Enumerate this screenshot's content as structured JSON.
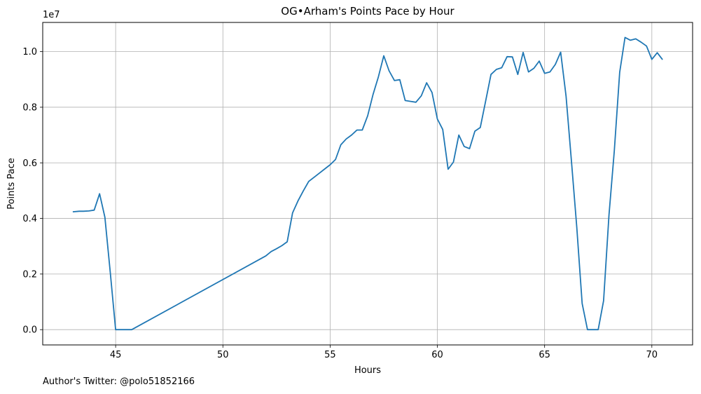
{
  "chart_data": {
    "type": "line",
    "title": "OG•Arham's Points Pace by Hour",
    "xlabel": "Hours",
    "ylabel": "Points Pace",
    "y_multiplier_label": "1e7",
    "xlim": [
      41.6,
      71.9
    ],
    "ylim": [
      -0.055,
      1.105
    ],
    "x_ticks": [
      45,
      50,
      55,
      60,
      65,
      70
    ],
    "y_ticks": [
      0.0,
      0.2,
      0.4,
      0.6,
      0.8,
      1.0
    ],
    "x_tick_labels": [
      "45",
      "50",
      "55",
      "60",
      "65",
      "70"
    ],
    "y_tick_labels": [
      "0.0",
      "0.2",
      "0.4",
      "0.6",
      "0.8",
      "1.0"
    ],
    "grid": true,
    "line_color": "#1f77b4",
    "series": [
      {
        "x": [
          43.0,
          43.3,
          43.5,
          43.75,
          44.0,
          44.25,
          44.5,
          44.75,
          45.0,
          45.25,
          45.5,
          45.75,
          52.0,
          52.25,
          52.5,
          52.75,
          53.0,
          53.25,
          53.5,
          53.75,
          54.0,
          54.25,
          54.5,
          54.75,
          55.0,
          55.25,
          55.5,
          55.75,
          56.0,
          56.25,
          56.5,
          56.75,
          57.0,
          57.25,
          57.5,
          57.75,
          58.0,
          58.25,
          58.5,
          58.75,
          59.0,
          59.25,
          59.5,
          59.75,
          60.0,
          60.25,
          60.5,
          60.75,
          61.0,
          61.25,
          61.5,
          61.75,
          62.0,
          62.25,
          62.5,
          62.75,
          63.0,
          63.25,
          63.5,
          63.75,
          64.0,
          64.25,
          64.5,
          64.75,
          65.0,
          65.25,
          65.5,
          65.75,
          66.0,
          66.25,
          66.5,
          66.75,
          67.0,
          67.25,
          67.5,
          67.75,
          68.0,
          68.25,
          68.5,
          68.75,
          69.0,
          69.25,
          69.5,
          69.75,
          70.0,
          70.25,
          70.5
        ],
        "y": [
          0.424,
          0.426,
          0.426,
          0.427,
          0.43,
          0.489,
          0.404,
          0.205,
          0.0,
          0.0,
          0.0,
          0.0,
          0.265,
          0.281,
          0.291,
          0.302,
          0.316,
          0.42,
          0.463,
          0.499,
          0.533,
          0.548,
          0.563,
          0.578,
          0.593,
          0.612,
          0.665,
          0.686,
          0.7,
          0.718,
          0.718,
          0.769,
          0.846,
          0.909,
          0.985,
          0.931,
          0.896,
          0.899,
          0.824,
          0.821,
          0.818,
          0.841,
          0.888,
          0.853,
          0.758,
          0.72,
          0.577,
          0.603,
          0.7,
          0.659,
          0.651,
          0.714,
          0.727,
          0.821,
          0.918,
          0.936,
          0.942,
          0.982,
          0.981,
          0.918,
          0.997,
          0.927,
          0.94,
          0.966,
          0.922,
          0.927,
          0.954,
          0.998,
          0.84,
          0.606,
          0.369,
          0.094,
          0.0,
          0.0,
          0.0,
          0.104,
          0.412,
          0.643,
          0.926,
          1.051,
          1.041,
          1.046,
          1.034,
          1.02,
          0.972,
          0.996,
          0.971
        ]
      }
    ]
  },
  "footer": {
    "author_text": "Author's Twitter: @polo51852166"
  }
}
